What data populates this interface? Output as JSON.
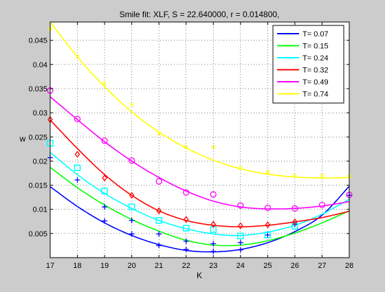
{
  "chart_data": {
    "type": "line",
    "title": "Smile fit: XLF, S = 22.640000, r = 0.014800,",
    "xlabel": "K",
    "ylabel": "w",
    "xlim": [
      17,
      28
    ],
    "ylim": [
      0,
      0.0488
    ],
    "xticks": [
      17,
      18,
      19,
      20,
      21,
      22,
      23,
      24,
      25,
      26,
      27,
      28
    ],
    "yticks": [
      0.005,
      0.01,
      0.015,
      0.02,
      0.025,
      0.03,
      0.035,
      0.04,
      0.045
    ],
    "ytick_labels": [
      "0.005",
      "0.01",
      "0.015",
      "0.02",
      "0.025",
      "0.03",
      "0.035",
      "0.04",
      "0.045"
    ],
    "grid": true,
    "legend_position": "top-right",
    "series": [
      {
        "name": "T= 0.07",
        "color": "#0000ff",
        "marker": "plus",
        "points": [
          [
            17,
            0.0207
          ],
          [
            18,
            0.0161
          ],
          [
            19,
            0.0105
          ],
          [
            19,
            0.0076
          ],
          [
            20,
            0.0077
          ],
          [
            20,
            0.0049
          ],
          [
            21,
            0.0049
          ],
          [
            21,
            0.0025
          ],
          [
            22,
            0.0034
          ],
          [
            22,
            0.0017
          ],
          [
            23,
            0.0029
          ],
          [
            23,
            0.0013
          ],
          [
            24,
            0.0031
          ],
          [
            24,
            0.0016
          ],
          [
            25,
            0.0047
          ],
          [
            26,
            0.0069
          ],
          [
            28,
            0.0129
          ]
        ],
        "fit_x": [
          17,
          18,
          19,
          20,
          21,
          22,
          23,
          24,
          25,
          26,
          27,
          28
        ],
        "fit_y": [
          0.0147,
          0.0106,
          0.0072,
          0.0046,
          0.0027,
          0.0015,
          0.0012,
          0.0017,
          0.0031,
          0.0054,
          0.0088,
          0.0148
        ]
      },
      {
        "name": "T= 0.15",
        "color": "#00ff00",
        "marker": "none",
        "points": [],
        "fit_x": [
          17,
          18,
          19,
          20,
          21,
          22,
          23,
          24,
          25,
          26,
          27,
          28
        ],
        "fit_y": [
          0.0187,
          0.0145,
          0.0109,
          0.0079,
          0.0055,
          0.0036,
          0.0026,
          0.0026,
          0.0035,
          0.0051,
          0.0072,
          0.0097
        ]
      },
      {
        "name": "T= 0.24",
        "color": "#00ffff",
        "marker": "square",
        "points": [
          [
            17,
            0.0237
          ],
          [
            18,
            0.0186
          ],
          [
            19,
            0.0138
          ],
          [
            20,
            0.0105
          ],
          [
            21,
            0.0077
          ],
          [
            22,
            0.0061
          ],
          [
            23,
            0.0058
          ],
          [
            24,
            0.0045
          ],
          [
            25,
            0.0047
          ],
          [
            26,
            0.0065
          ]
        ],
        "fit_x": [
          17,
          18,
          19,
          20,
          21,
          22,
          23,
          24,
          25,
          26,
          27,
          28
        ],
        "fit_y": [
          0.0218,
          0.0172,
          0.0133,
          0.0102,
          0.0077,
          0.006,
          0.0049,
          0.0046,
          0.0053,
          0.0067,
          0.009,
          0.0121
        ]
      },
      {
        "name": "T= 0.32",
        "color": "#ff0000",
        "marker": "diamond",
        "points": [
          [
            17,
            0.0286
          ],
          [
            18,
            0.0214
          ],
          [
            19,
            0.0165
          ],
          [
            20,
            0.0129
          ],
          [
            21,
            0.0097
          ],
          [
            22,
            0.0079
          ],
          [
            23,
            0.0069
          ],
          [
            24,
            0.0066
          ],
          [
            25,
            0.0068
          ],
          [
            26,
            0.0074
          ]
        ],
        "fit_x": [
          17,
          18,
          19,
          20,
          21,
          22,
          23,
          24,
          25,
          26,
          27,
          28
        ],
        "fit_y": [
          0.0285,
          0.0226,
          0.0172,
          0.0129,
          0.0097,
          0.0077,
          0.0067,
          0.0064,
          0.0067,
          0.0074,
          0.0083,
          0.0096
        ]
      },
      {
        "name": "T= 0.49",
        "color": "#ff00ff",
        "marker": "circle",
        "points": [
          [
            17,
            0.0346
          ],
          [
            18,
            0.0287
          ],
          [
            19,
            0.0242
          ],
          [
            20,
            0.0201
          ],
          [
            21,
            0.0158
          ],
          [
            22,
            0.0135
          ],
          [
            23,
            0.0131
          ],
          [
            24,
            0.0108
          ],
          [
            25,
            0.0103
          ],
          [
            26,
            0.0102
          ],
          [
            27,
            0.0109
          ],
          [
            28,
            0.013
          ]
        ],
        "fit_x": [
          17,
          18,
          19,
          20,
          21,
          22,
          23,
          24,
          25,
          26,
          27,
          28
        ],
        "fit_y": [
          0.0333,
          0.0286,
          0.024,
          0.02,
          0.0166,
          0.0138,
          0.0117,
          0.0105,
          0.0101,
          0.0102,
          0.0107,
          0.0116
        ]
      },
      {
        "name": "T= 0.74",
        "color": "#ffff00",
        "marker": "x",
        "points": [
          [
            17,
            0.0474
          ],
          [
            18,
            0.0416
          ],
          [
            19,
            0.0361
          ],
          [
            20,
            0.0317
          ],
          [
            21,
            0.0257
          ],
          [
            22,
            0.0229
          ],
          [
            23,
            0.0229
          ],
          [
            24,
            0.0186
          ],
          [
            25,
            0.0177
          ],
          [
            26,
            0.017
          ],
          [
            27,
            0.017
          ],
          [
            28,
            0.0168
          ]
        ],
        "fit_x": [
          17,
          18,
          19,
          20,
          21,
          22,
          23,
          24,
          25,
          26,
          27,
          28
        ],
        "fit_y": [
          0.0488,
          0.0416,
          0.0354,
          0.0302,
          0.026,
          0.0227,
          0.0202,
          0.0184,
          0.0173,
          0.0167,
          0.0165,
          0.0166
        ]
      }
    ]
  }
}
